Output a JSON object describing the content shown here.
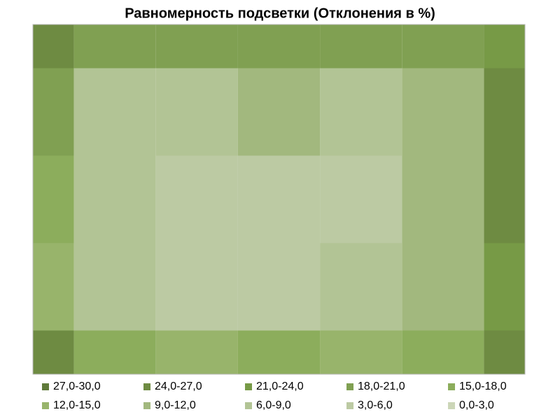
{
  "chart_data": {
    "type": "contour",
    "title": "Равномерность подсветки (Отклонения в %)",
    "levels": [
      0,
      3,
      6,
      9,
      12,
      15,
      18,
      21,
      24,
      27,
      30
    ],
    "z": [
      [
        24,
        20,
        18,
        19,
        18,
        20,
        22
      ],
      [
        20,
        8,
        8,
        9,
        7,
        10,
        24
      ],
      [
        16,
        8,
        3,
        3,
        5,
        9,
        24
      ],
      [
        14,
        8,
        5,
        5,
        7,
        10,
        22
      ],
      [
        24,
        16,
        14,
        15,
        14,
        16,
        26
      ]
    ],
    "series": [
      {
        "name": "27,0-30,0",
        "color": "#5f7a3a"
      },
      {
        "name": "24,0-27,0",
        "color": "#6e8b42"
      },
      {
        "name": "21,0-24,0",
        "color": "#779a46"
      },
      {
        "name": "18,0-21,0",
        "color": "#80a052"
      },
      {
        "name": "15,0-18,0",
        "color": "#8cad5c"
      },
      {
        "name": "12,0-15,0",
        "color": "#98b46b"
      },
      {
        "name": "9,0-12,0",
        "color": "#a2b87e"
      },
      {
        "name": "6,0-9,0",
        "color": "#b2c495"
      },
      {
        "name": "3,0-6,0",
        "color": "#bccaa3"
      },
      {
        "name": "0,0-3,0",
        "color": "#ccd6b8"
      }
    ]
  }
}
